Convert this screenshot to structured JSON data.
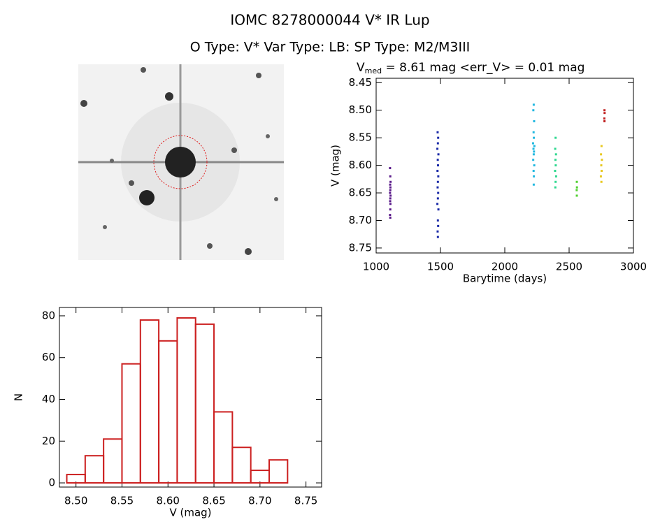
{
  "title": "IOMC 8278000044    V* IR Lup",
  "subtitle": "O Type: V*  Var Type: LB:  SP Type: M2/M3III",
  "chart_data": [
    {
      "type": "scatter",
      "title_parts": [
        "V",
        "med",
        " = 8.61 mag <err_V> = 0.01 mag"
      ],
      "xlabel": "Barytime (days)",
      "ylabel": "V (mag)",
      "xlim": [
        1000,
        3000
      ],
      "xticks": [
        1000,
        1500,
        2000,
        2500,
        3000
      ],
      "ylim": [
        8.442,
        8.759
      ],
      "y_inverted": true,
      "yticks": [
        8.45,
        {
          "value": 8.5,
          "label": "8.50"
        },
        8.55,
        {
          "value": 8.6,
          "label": "8.60"
        },
        8.65,
        {
          "value": 8.7,
          "label": "8.70"
        },
        8.75
      ],
      "series": [
        {
          "color": "#5a1a8a",
          "x": [
            1108,
            1110,
            1112,
            1109,
            1111,
            1110,
            1108,
            1112,
            1110,
            1109,
            1111,
            1110,
            1108,
            1110
          ],
          "values": [
            8.605,
            8.62,
            8.63,
            8.635,
            8.64,
            8.645,
            8.65,
            8.655,
            8.66,
            8.665,
            8.67,
            8.68,
            8.69,
            8.695
          ]
        },
        {
          "color": "#1a2aa8",
          "x": [
            1478,
            1482,
            1480,
            1476,
            1484,
            1479,
            1481,
            1477,
            1483,
            1480,
            1478,
            1482,
            1480,
            1476,
            1484,
            1480,
            1482,
            1478,
            1480
          ],
          "values": [
            8.54,
            8.55,
            8.56,
            8.57,
            8.58,
            8.59,
            8.6,
            8.61,
            8.62,
            8.63,
            8.64,
            8.65,
            8.66,
            8.67,
            8.68,
            8.7,
            8.71,
            8.72,
            8.73
          ]
        },
        {
          "color": "#22b8e0",
          "x": [
            2225,
            2222,
            2228,
            2224,
            2226,
            2220,
            2230,
            2223,
            2227,
            2225,
            2221,
            2229,
            2224,
            2226,
            2225
          ],
          "values": [
            8.49,
            8.5,
            8.52,
            8.54,
            8.55,
            8.56,
            8.565,
            8.57,
            8.575,
            8.58,
            8.59,
            8.6,
            8.61,
            8.62,
            8.635
          ]
        },
        {
          "color": "#30d890",
          "x": [
            2395,
            2392,
            2398,
            2394,
            2396,
            2391,
            2399,
            2395,
            2393
          ],
          "values": [
            8.55,
            8.57,
            8.58,
            8.59,
            8.6,
            8.61,
            8.62,
            8.63,
            8.64
          ]
        },
        {
          "color": "#50d030",
          "x": [
            2560,
            2561,
            2559,
            2560
          ],
          "values": [
            8.63,
            8.64,
            8.645,
            8.655
          ]
        },
        {
          "color": "#e8c820",
          "x": [
            2752,
            2748,
            2755,
            2750,
            2753,
            2747,
            2751
          ],
          "values": [
            8.565,
            8.58,
            8.59,
            8.6,
            8.61,
            8.62,
            8.63
          ]
        },
        {
          "color": "#c02020",
          "x": [
            2775,
            2776,
            2774,
            2775
          ],
          "values": [
            8.5,
            8.505,
            8.515,
            8.52
          ]
        }
      ]
    },
    {
      "type": "histogram",
      "xlabel": "V (mag)",
      "ylabel": "N",
      "color": "#cc2020",
      "bins": [
        8.49,
        8.51,
        8.53,
        8.55,
        8.57,
        8.59,
        8.61,
        8.63,
        8.65,
        8.67,
        8.69,
        8.71,
        8.73
      ],
      "values": [
        4,
        13,
        21,
        57,
        78,
        68,
        79,
        76,
        34,
        17,
        6,
        11
      ],
      "xlim": [
        8.482,
        8.767
      ],
      "xticks": [
        {
          "value": 8.5,
          "label": "8.50"
        },
        8.55,
        {
          "value": 8.6,
          "label": "8.60"
        },
        8.65,
        {
          "value": 8.7,
          "label": "8.70"
        },
        8.75
      ],
      "ylim": [
        -2,
        84
      ],
      "yticks": [
        0,
        20,
        40,
        60,
        80
      ]
    }
  ]
}
